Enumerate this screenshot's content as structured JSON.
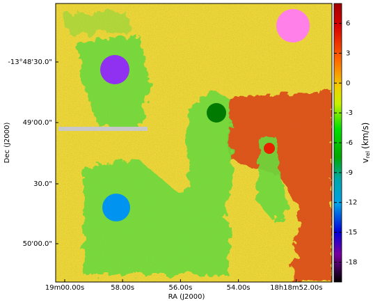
{
  "chart_data": {
    "type": "image",
    "x_label": "RA (J2000)",
    "y_label": "Dec (J2000)",
    "x_tick_labels": [
      "19m00.00s",
      "58.00s",
      "56.00s",
      "54.00s",
      "18h18m52.00s"
    ],
    "y_tick_labels": [
      "-13°48'30.0\"",
      "49'00.0\"",
      "30.0\"",
      "50'00.0\""
    ],
    "colorbar": {
      "label": "v",
      "label_sub": "rel",
      "label_unit": "(km/s)",
      "clim": [
        -20,
        8
      ],
      "ticks": [
        6,
        3,
        0,
        -3,
        -6,
        -9,
        -12,
        -15,
        -18
      ]
    }
  }
}
